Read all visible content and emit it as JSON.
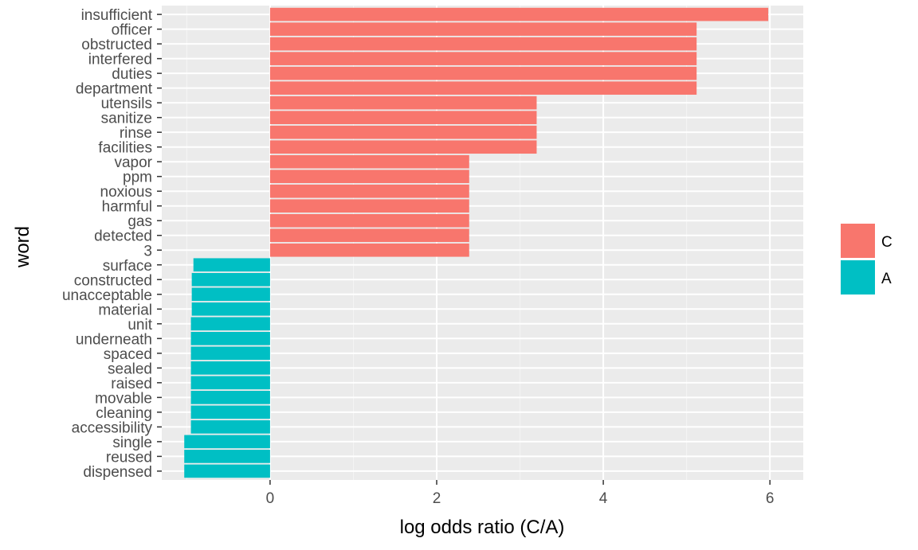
{
  "chart_data": {
    "type": "bar",
    "orientation": "horizontal",
    "xlabel": "log odds ratio (C/A)",
    "ylabel": "word",
    "xlim": [
      -1.3,
      6.4
    ],
    "x_ticks": [
      0,
      2,
      4,
      6
    ],
    "grid": true,
    "legend_position": "right",
    "colors": {
      "C": "#F8766D",
      "A": "#00BFC4"
    },
    "legend": [
      {
        "label": "C",
        "color": "#F8766D"
      },
      {
        "label": "A",
        "color": "#00BFC4"
      }
    ],
    "bars": [
      {
        "word": "insufficient",
        "value": 5.98,
        "group": "C"
      },
      {
        "word": "officer",
        "value": 5.12,
        "group": "C"
      },
      {
        "word": "obstructed",
        "value": 5.12,
        "group": "C"
      },
      {
        "word": "interfered",
        "value": 5.12,
        "group": "C"
      },
      {
        "word": "duties",
        "value": 5.12,
        "group": "C"
      },
      {
        "word": "department",
        "value": 5.12,
        "group": "C"
      },
      {
        "word": "utensils",
        "value": 3.2,
        "group": "C"
      },
      {
        "word": "sanitize",
        "value": 3.2,
        "group": "C"
      },
      {
        "word": "rinse",
        "value": 3.2,
        "group": "C"
      },
      {
        "word": "facilities",
        "value": 3.2,
        "group": "C"
      },
      {
        "word": "vapor",
        "value": 2.39,
        "group": "C"
      },
      {
        "word": "ppm",
        "value": 2.39,
        "group": "C"
      },
      {
        "word": "noxious",
        "value": 2.39,
        "group": "C"
      },
      {
        "word": "harmful",
        "value": 2.39,
        "group": "C"
      },
      {
        "word": "gas",
        "value": 2.39,
        "group": "C"
      },
      {
        "word": "detected",
        "value": 2.39,
        "group": "C"
      },
      {
        "word": "3",
        "value": 2.39,
        "group": "C"
      },
      {
        "word": "surface",
        "value": -0.92,
        "group": "A"
      },
      {
        "word": "constructed",
        "value": -0.94,
        "group": "A"
      },
      {
        "word": "unacceptable",
        "value": -0.94,
        "group": "A"
      },
      {
        "word": "material",
        "value": -0.94,
        "group": "A"
      },
      {
        "word": "unit",
        "value": -0.95,
        "group": "A"
      },
      {
        "word": "underneath",
        "value": -0.95,
        "group": "A"
      },
      {
        "word": "spaced",
        "value": -0.95,
        "group": "A"
      },
      {
        "word": "sealed",
        "value": -0.95,
        "group": "A"
      },
      {
        "word": "raised",
        "value": -0.95,
        "group": "A"
      },
      {
        "word": "movable",
        "value": -0.95,
        "group": "A"
      },
      {
        "word": "cleaning",
        "value": -0.95,
        "group": "A"
      },
      {
        "word": "accessibility",
        "value": -0.95,
        "group": "A"
      },
      {
        "word": "single",
        "value": -1.03,
        "group": "A"
      },
      {
        "word": "reused",
        "value": -1.03,
        "group": "A"
      },
      {
        "word": "dispensed",
        "value": -1.03,
        "group": "A"
      }
    ]
  }
}
